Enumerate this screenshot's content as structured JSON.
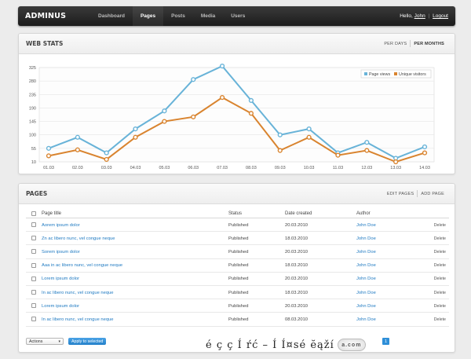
{
  "app": {
    "brand": "ADMINUS",
    "nav": [
      "Dashboard",
      "Pages",
      "Posts",
      "Media",
      "Users"
    ],
    "active_nav": "Pages",
    "user": {
      "greeting": "Hello,",
      "name": "John",
      "separator": "|",
      "logout": "Logout"
    }
  },
  "stats_panel": {
    "title": "WEB STATS",
    "actions": [
      "PER DAYS",
      "PER MONTHS"
    ],
    "active_action": "PER MONTHS"
  },
  "chart_data": {
    "type": "line",
    "categories": [
      "01.03",
      "02.03",
      "03.03",
      "04.03",
      "05.03",
      "06.03",
      "07.03",
      "08.03",
      "09.03",
      "10.03",
      "11.03",
      "12.03",
      "13.03",
      "14.03"
    ],
    "series": [
      {
        "name": "Page views",
        "color": "#68b3d8",
        "values": [
          55,
          92,
          40,
          120,
          180,
          285,
          330,
          215,
          100,
          120,
          40,
          75,
          22,
          60
        ]
      },
      {
        "name": "Unique visitors",
        "color": "#d9842f",
        "values": [
          30,
          50,
          18,
          92,
          145,
          160,
          225,
          172,
          48,
          92,
          32,
          48,
          10,
          40
        ]
      }
    ],
    "yticks": [
      10,
      55,
      100,
      145,
      190,
      235,
      280,
      325
    ],
    "ylim": [
      10,
      325
    ],
    "grid": true,
    "legend": "top-right"
  },
  "pages_panel": {
    "title": "PAGES",
    "actions": [
      "EDIT PAGES",
      "ADD PAGE"
    ],
    "columns": [
      "Page title",
      "Status",
      "Date created",
      "Author"
    ],
    "rows": [
      {
        "title": "Aorem ipsum dolor",
        "status": "Published",
        "date": "20.03.2010",
        "author": "John Doe",
        "action": "Delete"
      },
      {
        "title": "Zn ac libero nunc, vel congue neque",
        "status": "Published",
        "date": "18.03.2010",
        "author": "John Doe",
        "action": "Delete"
      },
      {
        "title": "Sorem ipsum dolor",
        "status": "Published",
        "date": "20.03.2010",
        "author": "John Doe",
        "action": "Delete"
      },
      {
        "title": "Aaa in ac libero nunc, vel congue neque",
        "status": "Published",
        "date": "18.03.2010",
        "author": "John Doe",
        "action": "Delete"
      },
      {
        "title": "Lorem ipsum dolor",
        "status": "Published",
        "date": "20.03.2010",
        "author": "John Doe",
        "action": "Delete"
      },
      {
        "title": "In ac libero nunc, vel congue neque",
        "status": "Published",
        "date": "18.03.2010",
        "author": "John Doe",
        "action": "Delete"
      },
      {
        "title": "Lorem ipsum dolor",
        "status": "Published",
        "date": "20.03.2010",
        "author": "John Doe",
        "action": "Delete"
      },
      {
        "title": "In ac libero nunc, vel congue neque",
        "status": "Published",
        "date": "08.03.2010",
        "author": "John Doe",
        "action": "Delete"
      }
    ],
    "bulk_select": "Actions",
    "apply_label": "Apply to selected",
    "current_page": "1"
  },
  "watermark": {
    "text": "é ç ç Í ŕć – Í Í¤sé ĕąží",
    "badge": "a.com"
  }
}
